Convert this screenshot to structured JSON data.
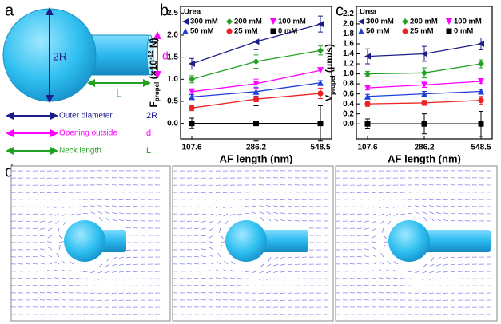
{
  "panel_labels": [
    "a",
    "b",
    "c",
    "d"
  ],
  "diagram": {
    "labels": {
      "diameter": "2R",
      "opening": "d",
      "neck": "L"
    },
    "legend": [
      {
        "text": "Outer diameter",
        "symbol": "2R"
      },
      {
        "text": "Opening outside",
        "symbol": "d"
      },
      {
        "text": "Neck length",
        "symbol": "L"
      }
    ]
  },
  "chart_data": [
    {
      "type": "line",
      "xlabel": "AF length (nm)",
      "ylabel": {
        "main": "F",
        "sub": "propel",
        "open": " (×10",
        "sup": "-12",
        "close": " N)"
      },
      "legend_title": "Urea",
      "categories": [
        "107.6",
        "286.2",
        "548.5"
      ],
      "ylim": [
        -0.35,
        2.65
      ],
      "yticks": [
        "0.0",
        "0.5",
        "1.0",
        "1.5",
        "2.0",
        "2.5"
      ],
      "series": [
        {
          "name": "300 mM",
          "color": "#1c1c8a",
          "marker": "ltri",
          "values": [
            1.35,
            1.85,
            2.25
          ],
          "errors": [
            0.12,
            0.18,
            0.18
          ]
        },
        {
          "name": "200 mM",
          "color": "#22a022",
          "marker": "diamond",
          "values": [
            1.0,
            1.4,
            1.65
          ],
          "errors": [
            0.08,
            0.15,
            0.1
          ]
        },
        {
          "name": "100 mM",
          "color": "#ff00ff",
          "marker": "dtri",
          "values": [
            0.72,
            0.9,
            1.2
          ],
          "errors": [
            0.06,
            0.1,
            0.06
          ]
        },
        {
          "name": "50 mM",
          "color": "#1f3fdc",
          "marker": "utri",
          "values": [
            0.6,
            0.72,
            0.92
          ],
          "errors": [
            0.05,
            0.1,
            0.05
          ]
        },
        {
          "name": "25 mM",
          "color": "#ee2222",
          "marker": "circle",
          "values": [
            0.35,
            0.55,
            0.68
          ],
          "errors": [
            0.06,
            0.06,
            0.12
          ]
        },
        {
          "name": "0 mM",
          "color": "#000000",
          "marker": "square",
          "values": [
            0,
            0,
            0
          ],
          "errors": [
            0.12,
            0.4,
            0.4
          ]
        }
      ]
    },
    {
      "type": "line",
      "xlabel": "AF length (nm)",
      "ylabel": {
        "main": "V",
        "sub": "propel",
        "open": " (μm/s)",
        "sup": "",
        "close": ""
      },
      "legend_title": "Urea",
      "categories": [
        "107.6",
        "286.2",
        "548.5"
      ],
      "ylim": [
        -0.3,
        2.35
      ],
      "yticks": [
        "0.0",
        "0.2",
        "0.4",
        "0.6",
        "0.8",
        "1.0",
        "1.2",
        "1.4",
        "1.6",
        "1.8",
        "2.0",
        "2.2"
      ],
      "series": [
        {
          "name": "300 mM",
          "color": "#1c1c8a",
          "marker": "ltri",
          "values": [
            1.35,
            1.4,
            1.6
          ],
          "errors": [
            0.15,
            0.15,
            0.12
          ]
        },
        {
          "name": "200 mM",
          "color": "#22a022",
          "marker": "diamond",
          "values": [
            1.0,
            1.02,
            1.2
          ],
          "errors": [
            0.05,
            0.1,
            0.08
          ]
        },
        {
          "name": "100 mM",
          "color": "#ff00ff",
          "marker": "dtri",
          "values": [
            0.72,
            0.78,
            0.85
          ],
          "errors": [
            0.04,
            0.05,
            0.04
          ]
        },
        {
          "name": "50 mM",
          "color": "#1f3fdc",
          "marker": "utri",
          "values": [
            0.55,
            0.6,
            0.65
          ],
          "errors": [
            0.04,
            0.05,
            0.04
          ]
        },
        {
          "name": "25 mM",
          "color": "#ee2222",
          "marker": "circle",
          "values": [
            0.4,
            0.42,
            0.47
          ],
          "errors": [
            0.05,
            0.05,
            0.08
          ]
        },
        {
          "name": "0 mM",
          "color": "#000000",
          "marker": "square",
          "values": [
            0,
            0,
            0
          ],
          "errors": [
            0.1,
            0.2,
            0.25
          ]
        }
      ]
    }
  ]
}
